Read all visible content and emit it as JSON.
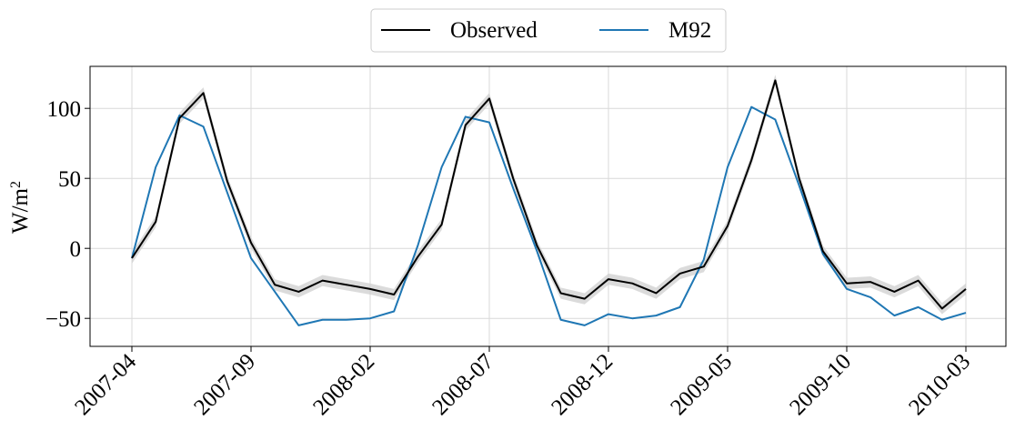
{
  "chart_data": {
    "type": "line",
    "ylabel": "W/m",
    "ylabel_sup": "2",
    "ylim": [
      -70,
      130
    ],
    "yticks": [
      -50,
      0,
      50,
      100
    ],
    "ytick_labels": [
      "−50",
      "0",
      "50",
      "100"
    ],
    "xticks": [
      "2007-04",
      "2007-09",
      "2008-02",
      "2008-07",
      "2008-12",
      "2009-05",
      "2009-10",
      "2010-03"
    ],
    "grid": true,
    "legend_position": "top-center",
    "x": [
      "2007-04",
      "2007-05",
      "2007-06",
      "2007-07",
      "2007-08",
      "2007-09",
      "2007-10",
      "2007-11",
      "2007-12",
      "2008-01",
      "2008-02",
      "2008-03",
      "2008-04",
      "2008-05",
      "2008-06",
      "2008-07",
      "2008-08",
      "2008-09",
      "2008-10",
      "2008-11",
      "2008-12",
      "2009-01",
      "2009-02",
      "2009-03",
      "2009-04",
      "2009-05",
      "2009-06",
      "2009-07",
      "2009-08",
      "2009-09",
      "2009-10",
      "2009-11",
      "2009-12",
      "2010-01",
      "2010-02",
      "2010-03"
    ],
    "series": [
      {
        "name": "Observed",
        "color": "#000000",
        "band": 4,
        "band_color": "#cccccc",
        "values": [
          -7,
          19,
          93,
          111,
          48,
          4,
          -26,
          -31,
          -23,
          -26,
          -29,
          -33,
          -6,
          17,
          88,
          107,
          50,
          2,
          -32,
          -36,
          -22,
          -25,
          -32,
          -18,
          -13,
          16,
          63,
          120,
          50,
          -2,
          -25,
          -24,
          -31,
          -23,
          -43,
          -29
        ]
      },
      {
        "name": "M92",
        "color": "#1f77b4",
        "values": [
          -7,
          58,
          95,
          87,
          40,
          -7,
          -31,
          -55,
          -51,
          -51,
          -50,
          -45,
          2,
          58,
          94,
          90,
          43,
          -2,
          -51,
          -55,
          -47,
          -50,
          -48,
          -42,
          -8,
          58,
          101,
          92,
          45,
          -4,
          -29,
          -35,
          -48,
          -42,
          -51,
          -46
        ]
      }
    ]
  }
}
